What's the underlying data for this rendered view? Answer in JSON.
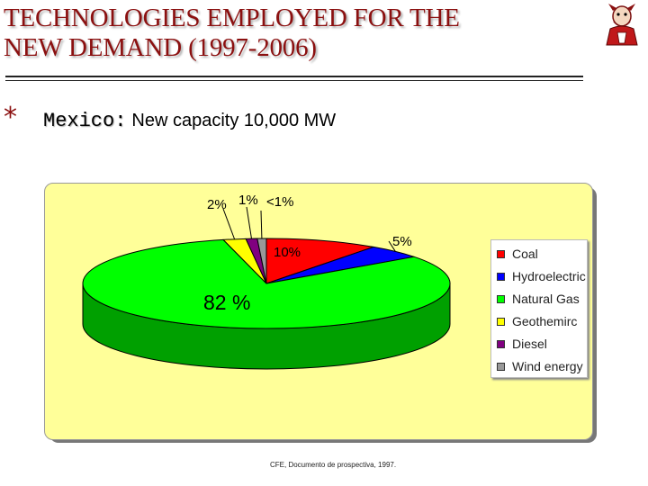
{
  "header": {
    "title_line1": "TECHNOLOGIES EMPLOYED FOR THE",
    "title_line2": "NEW DEMAND (1997-2006)"
  },
  "subtitle": {
    "bullet": "*",
    "country": "Mexico:",
    "text": "New capacity 10,000 MW"
  },
  "source": "CFE, Documento de prospectiva, 1997.",
  "colors": {
    "title": "#8b1010",
    "panel_bg": "#ffff99"
  },
  "chart_data": {
    "type": "pie",
    "style": "3d",
    "legend_position": "right",
    "slices": [
      {
        "name": "Coal",
        "value": 10,
        "label": "10%",
        "color": "#ff0000",
        "side": "#b00000"
      },
      {
        "name": "Hydroelectric",
        "value": 5,
        "label": "5%",
        "color": "#0000ff",
        "side": "#0000a0"
      },
      {
        "name": "Natural Gas",
        "value": 82,
        "label": "82 %",
        "color": "#00ff00",
        "side": "#00a000"
      },
      {
        "name": "Geothemirc",
        "value": 2,
        "label": "2%",
        "color": "#ffff00",
        "side": "#b0b000"
      },
      {
        "name": "Diesel",
        "value": 1,
        "label": "1%",
        "color": "#800080",
        "side": "#500050"
      },
      {
        "name": "Wind energy",
        "value": 0.8,
        "label": "<1%",
        "color": "#999999",
        "side": "#666666"
      }
    ]
  }
}
